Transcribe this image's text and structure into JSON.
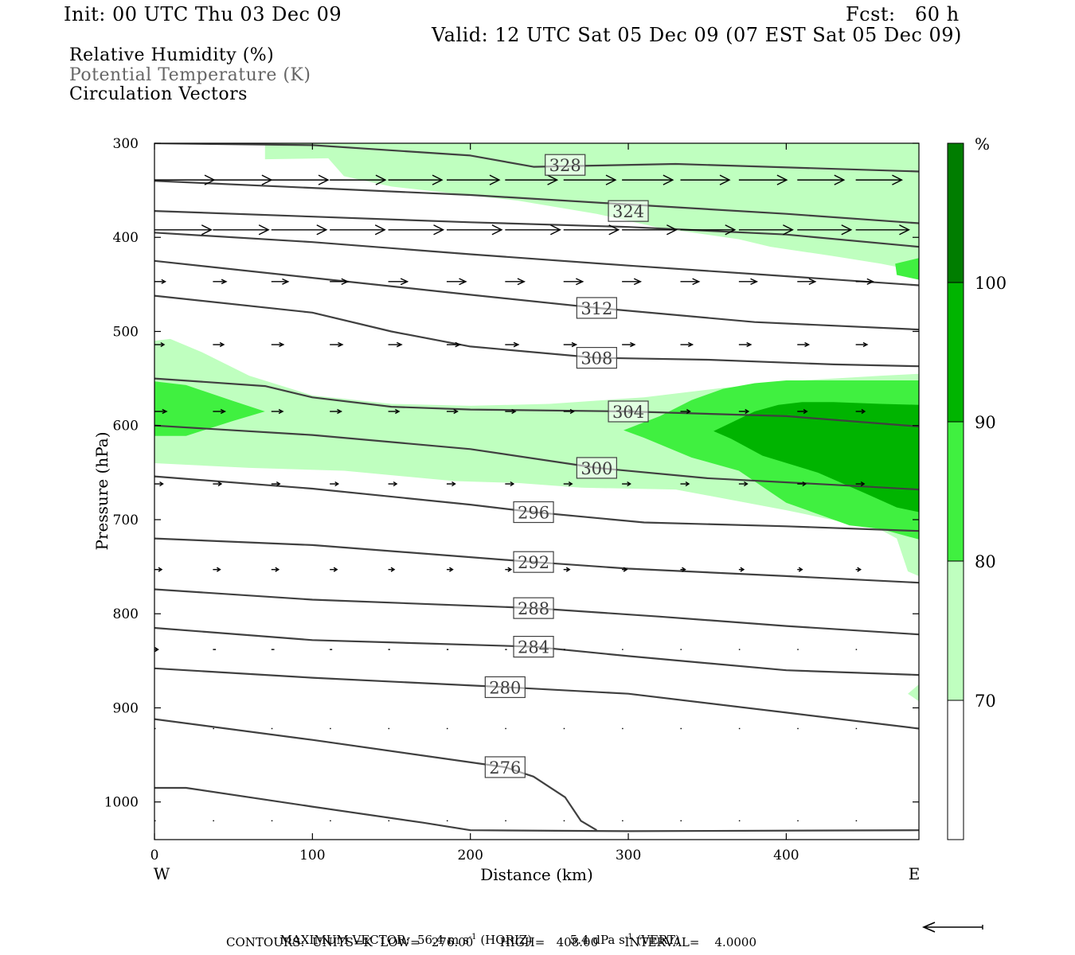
{
  "header": {
    "init": "Init: 00 UTC Thu 03 Dec 09",
    "fcst": "Fcst:   60 h",
    "valid": "Valid: 12 UTC Sat 05 Dec 09 (07 EST Sat 05 Dec 09)"
  },
  "legend": {
    "line1": "Relative Humidity (%)",
    "line2": "Potential Temperature (K)",
    "line3": "Circulation Vectors"
  },
  "footer": {
    "max_vector_label": "MAXIMUM VECTOR:",
    "horiz_value": "56.4 m s",
    "horiz_unit": "(HORIZ)",
    "vert_value": "5.4 dPa s",
    "vert_unit": "(VERT)",
    "sup": "-1",
    "contours": "CONTOURS:  UNITS=K  LOW=   276.00       HIGH=   408.00       INTERVAL=    4.0000"
  },
  "colors": {
    "rh70": "#bfffbf",
    "rh80": "#40f040",
    "rh90": "#00b400",
    "rh100": "#007d00",
    "isentrope": "#404040",
    "vector": "#000000"
  },
  "chart_data": {
    "type": "cross-section",
    "xlabel": "Distance (km)",
    "ylabel": "Pressure (hPa)",
    "xlim": [
      0,
      484
    ],
    "ylim": [
      1040,
      300
    ],
    "x_ticks": [
      0,
      100,
      200,
      300,
      400
    ],
    "y_ticks": [
      300,
      400,
      500,
      600,
      700,
      800,
      900,
      1000
    ],
    "left_end_label": "W",
    "right_end_label": "E",
    "colorbar": {
      "unit": "%",
      "levels": [
        70,
        80,
        90,
        100
      ],
      "labels": [
        "70",
        "80",
        "90",
        "100"
      ],
      "colors": [
        "#ffffff",
        "#bfffbf",
        "#40f040",
        "#00b400",
        "#007d00"
      ]
    },
    "rh_regions": [
      {
        "level": 70,
        "polygon": [
          [
            70,
            317
          ],
          [
            110,
            316
          ],
          [
            120,
            335
          ],
          [
            150,
            346
          ],
          [
            230,
            361
          ],
          [
            280,
            375
          ],
          [
            320,
            390
          ],
          [
            370,
            402
          ],
          [
            390,
            410
          ],
          [
            430,
            420
          ],
          [
            460,
            428
          ],
          [
            484,
            436
          ],
          [
            484,
            300
          ],
          [
            70,
            300
          ]
        ]
      },
      {
        "level": 70,
        "polygon": [
          [
            0,
            510
          ],
          [
            10,
            508
          ],
          [
            30,
            522
          ],
          [
            60,
            547
          ],
          [
            100,
            568
          ],
          [
            150,
            577
          ],
          [
            200,
            579
          ],
          [
            250,
            577
          ],
          [
            310,
            570
          ],
          [
            360,
            560
          ],
          [
            410,
            552
          ],
          [
            460,
            547
          ],
          [
            484,
            545
          ],
          [
            484,
            760
          ],
          [
            477,
            755
          ],
          [
            470,
            720
          ],
          [
            460,
            711
          ],
          [
            400,
            690
          ],
          [
            330,
            668
          ],
          [
            270,
            666
          ],
          [
            230,
            661
          ],
          [
            190,
            659
          ],
          [
            120,
            648
          ],
          [
            60,
            645
          ],
          [
            0,
            640
          ]
        ]
      },
      {
        "level": 70,
        "polygon": [
          [
            484,
            875
          ],
          [
            477,
            885
          ],
          [
            484,
            893
          ]
        ]
      },
      {
        "level": 80,
        "polygon": [
          [
            0,
            553
          ],
          [
            20,
            557
          ],
          [
            50,
            574
          ],
          [
            70,
            585
          ],
          [
            50,
            595
          ],
          [
            20,
            611
          ],
          [
            0,
            611
          ]
        ]
      },
      {
        "level": 80,
        "polygon": [
          [
            297,
            605
          ],
          [
            320,
            590
          ],
          [
            340,
            573
          ],
          [
            360,
            561
          ],
          [
            380,
            555
          ],
          [
            400,
            552
          ],
          [
            420,
            552
          ],
          [
            460,
            552
          ],
          [
            484,
            552
          ],
          [
            484,
            721
          ],
          [
            460,
            710
          ],
          [
            440,
            706
          ],
          [
            400,
            682
          ],
          [
            370,
            648
          ],
          [
            340,
            634
          ],
          [
            310,
            613
          ]
        ]
      },
      {
        "level": 80,
        "polygon": [
          [
            469,
            428
          ],
          [
            484,
            422
          ],
          [
            484,
            445
          ],
          [
            470,
            440
          ]
        ]
      },
      {
        "level": 90,
        "polygon": [
          [
            354,
            606
          ],
          [
            370,
            593
          ],
          [
            380,
            585
          ],
          [
            395,
            578
          ],
          [
            410,
            575
          ],
          [
            430,
            575
          ],
          [
            460,
            577
          ],
          [
            484,
            578
          ],
          [
            484,
            692
          ],
          [
            470,
            687
          ],
          [
            450,
            672
          ],
          [
            420,
            650
          ],
          [
            385,
            632
          ],
          [
            365,
            614
          ]
        ]
      }
    ],
    "isentropes": [
      {
        "theta": null,
        "points": [
          [
            0,
            300
          ],
          [
            100,
            302
          ],
          [
            200,
            313
          ],
          [
            240,
            325
          ],
          [
            330,
            322
          ],
          [
            484,
            330
          ]
        ]
      },
      {
        "theta": 328,
        "label_at": [
          260,
          323
        ],
        "points": [
          [
            0,
            340
          ],
          [
            200,
            355
          ],
          [
            300,
            365
          ],
          [
            400,
            375
          ],
          [
            484,
            385
          ]
        ]
      },
      {
        "theta": 324,
        "label_at": [
          300,
          372
        ],
        "points": [
          [
            0,
            372
          ],
          [
            100,
            378
          ],
          [
            200,
            384
          ],
          [
            300,
            389
          ],
          [
            400,
            397
          ],
          [
            484,
            410
          ]
        ]
      },
      {
        "theta": null,
        "points": [
          [
            0,
            395
          ],
          [
            100,
            405
          ],
          [
            200,
            418
          ],
          [
            300,
            430
          ],
          [
            380,
            439
          ],
          [
            484,
            451
          ]
        ]
      },
      {
        "theta": 312,
        "label_at": [
          280,
          475
        ],
        "points": [
          [
            0,
            425
          ],
          [
            100,
            443
          ],
          [
            200,
            461
          ],
          [
            280,
            475
          ],
          [
            380,
            490
          ],
          [
            484,
            498
          ]
        ]
      },
      {
        "theta": 308,
        "label_at": [
          280,
          528
        ],
        "points": [
          [
            0,
            462
          ],
          [
            100,
            480
          ],
          [
            150,
            500
          ],
          [
            200,
            516
          ],
          [
            280,
            528
          ],
          [
            350,
            530
          ],
          [
            430,
            535
          ],
          [
            484,
            537
          ]
        ]
      },
      {
        "theta": 304,
        "label_at": [
          300,
          585
        ],
        "points": [
          [
            0,
            550
          ],
          [
            70,
            558
          ],
          [
            100,
            570
          ],
          [
            150,
            580
          ],
          [
            200,
            583
          ],
          [
            300,
            585
          ],
          [
            400,
            590
          ],
          [
            484,
            601
          ]
        ]
      },
      {
        "theta": 300,
        "label_at": [
          280,
          645
        ],
        "points": [
          [
            0,
            600
          ],
          [
            100,
            610
          ],
          [
            200,
            625
          ],
          [
            280,
            645
          ],
          [
            350,
            656
          ],
          [
            430,
            663
          ],
          [
            484,
            668
          ]
        ]
      },
      {
        "theta": 296,
        "label_at": [
          240,
          692
        ],
        "points": [
          [
            0,
            654
          ],
          [
            100,
            667
          ],
          [
            200,
            684
          ],
          [
            240,
            692
          ],
          [
            310,
            703
          ],
          [
            400,
            707
          ],
          [
            484,
            712
          ]
        ]
      },
      {
        "theta": 292,
        "label_at": [
          240,
          745
        ],
        "points": [
          [
            0,
            720
          ],
          [
            100,
            727
          ],
          [
            240,
            745
          ],
          [
            300,
            752
          ],
          [
            400,
            760
          ],
          [
            484,
            767
          ]
        ]
      },
      {
        "theta": 288,
        "label_at": [
          240,
          794
        ],
        "points": [
          [
            0,
            774
          ],
          [
            100,
            785
          ],
          [
            240,
            794
          ],
          [
            320,
            803
          ],
          [
            400,
            813
          ],
          [
            484,
            822
          ]
        ]
      },
      {
        "theta": 284,
        "label_at": [
          240,
          835
        ],
        "points": [
          [
            0,
            815
          ],
          [
            100,
            828
          ],
          [
            240,
            835
          ],
          [
            300,
            845
          ],
          [
            400,
            860
          ],
          [
            484,
            865
          ]
        ]
      },
      {
        "theta": 280,
        "label_at": [
          222,
          878
        ],
        "points": [
          [
            0,
            858
          ],
          [
            100,
            868
          ],
          [
            222,
            878
          ],
          [
            300,
            885
          ],
          [
            400,
            905
          ],
          [
            484,
            922
          ]
        ]
      },
      {
        "theta": 276,
        "label_at": [
          222,
          963
        ],
        "points": [
          [
            0,
            912
          ],
          [
            100,
            934
          ],
          [
            222,
            963
          ],
          [
            240,
            973
          ],
          [
            260,
            995
          ],
          [
            270,
            1020
          ],
          [
            280,
            1030
          ]
        ]
      },
      {
        "theta": null,
        "points": [
          [
            0,
            985
          ],
          [
            20,
            985
          ],
          [
            100,
            1005
          ],
          [
            170,
            1022
          ],
          [
            200,
            1030
          ],
          [
            300,
            1031
          ],
          [
            484,
            1030
          ]
        ]
      }
    ],
    "vectors": {
      "columns": [
        0,
        37,
        74,
        111,
        148,
        185,
        222,
        259,
        296,
        333,
        370,
        407,
        444,
        484
      ],
      "rows": [
        {
          "p": 339,
          "u": [
            1.0,
            0.98,
            0.95,
            0.93,
            0.9,
            0.88,
            0.87,
            0.87,
            0.85,
            0.82,
            0.8,
            0.78,
            0.77,
            0.76
          ]
        },
        {
          "p": 392,
          "u": [
            0.95,
            0.93,
            0.92,
            0.92,
            0.92,
            0.92,
            0.92,
            0.92,
            0.91,
            0.91,
            0.9,
            0.9,
            0.89,
            0.88
          ]
        },
        {
          "p": 447,
          "u": [
            0.18,
            0.22,
            0.28,
            0.3,
            0.32,
            0.32,
            0.32,
            0.32,
            0.31,
            0.31,
            0.3,
            0.3,
            0.29,
            0.28
          ]
        },
        {
          "p": 514,
          "u": [
            0.16,
            0.18,
            0.2,
            0.21,
            0.22,
            0.22,
            0.22,
            0.21,
            0.21,
            0.2,
            0.2,
            0.19,
            0.19,
            0.18
          ]
        },
        {
          "p": 585,
          "u": [
            0.2,
            0.2,
            0.19,
            0.19,
            0.18,
            0.18,
            0.17,
            0.17,
            0.17,
            0.16,
            0.16,
            0.16,
            0.15,
            0.15
          ]
        },
        {
          "p": 662,
          "u": [
            0.14,
            0.14,
            0.14,
            0.14,
            0.14,
            0.14,
            0.14,
            0.14,
            0.14,
            0.14,
            0.14,
            0.14,
            0.14,
            0.13
          ]
        },
        {
          "p": 753,
          "u": [
            0.12,
            0.12,
            0.12,
            0.12,
            0.1,
            0.1,
            0.1,
            0.1,
            0.08,
            0.08,
            0.08,
            0.08,
            0.08,
            0.08
          ]
        },
        {
          "p": 838,
          "u": [
            0.06,
            0.05,
            0.05,
            0.04,
            0.03,
            0.03,
            0.03,
            0.03,
            0.02,
            0.02,
            0.02,
            0.02,
            0.02,
            0.02
          ]
        },
        {
          "p": 922,
          "u": [
            0.02,
            0.02,
            0.02,
            0.02,
            0.02,
            0.02,
            0.02,
            0.02,
            0.02,
            0.02,
            0.02,
            0.02,
            0.02,
            0.02
          ]
        },
        {
          "p": 1020,
          "u": [
            0.02,
            0.02,
            0.02,
            0.02,
            0.02,
            0.02,
            0.02,
            0.02,
            0.02,
            0.02,
            0.02,
            0.02,
            0.02,
            0.02
          ]
        }
      ]
    }
  }
}
